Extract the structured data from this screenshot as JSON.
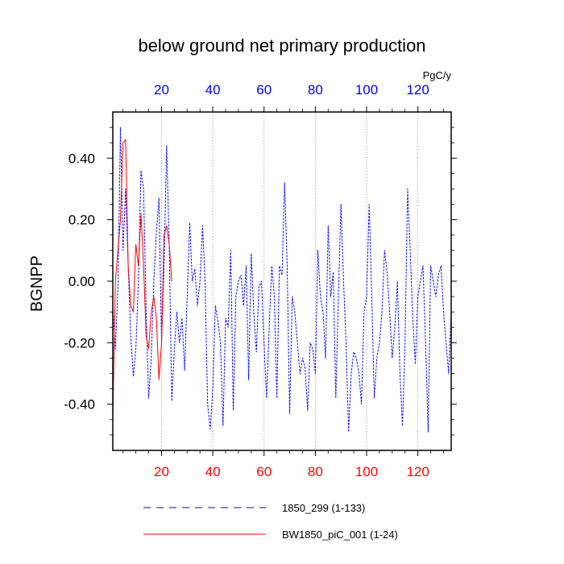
{
  "chart_data": {
    "type": "line",
    "title": "below ground net primary production",
    "units": "PgC/y",
    "ylabel": "BGNPP",
    "xlabel": "",
    "xlim": [
      1,
      133
    ],
    "ylim": [
      -0.55,
      0.55
    ],
    "grid": true,
    "x_ticks": [
      20,
      40,
      60,
      80,
      100,
      120
    ],
    "x_tick_labels": [
      "20",
      "40",
      "60",
      "80",
      "100",
      "120"
    ],
    "y_ticks": [
      -0.4,
      -0.2,
      0.0,
      0.2,
      0.4
    ],
    "y_tick_labels": [
      "-0.40",
      "-0.20",
      "0.00",
      "0.20",
      "0.40"
    ],
    "top_axis_color": "#0000ff",
    "bottom_axis_color": "#ff0000",
    "legend_position": "bottom",
    "series": [
      {
        "name": "1850_299 (1-133)",
        "color": "#0000ff",
        "dash": "dashed",
        "x": [
          1,
          2,
          3,
          4,
          5,
          6,
          7,
          8,
          9,
          10,
          11,
          12,
          13,
          14,
          15,
          16,
          17,
          18,
          19,
          20,
          21,
          22,
          23,
          24,
          25,
          26,
          27,
          28,
          29,
          30,
          31,
          32,
          33,
          34,
          35,
          36,
          37,
          38,
          39,
          40,
          41,
          42,
          43,
          44,
          45,
          46,
          47,
          48,
          49,
          50,
          51,
          52,
          53,
          54,
          55,
          56,
          57,
          58,
          59,
          60,
          61,
          62,
          63,
          64,
          65,
          66,
          67,
          68,
          69,
          70,
          71,
          72,
          73,
          74,
          75,
          76,
          77,
          78,
          79,
          80,
          81,
          82,
          83,
          84,
          85,
          86,
          87,
          88,
          89,
          90,
          91,
          92,
          93,
          94,
          95,
          96,
          97,
          98,
          99,
          100,
          101,
          102,
          103,
          104,
          105,
          106,
          107,
          108,
          109,
          110,
          111,
          112,
          113,
          114,
          115,
          116,
          117,
          118,
          119,
          120,
          121,
          122,
          123,
          124,
          125,
          126,
          127,
          128,
          129,
          130,
          131,
          132,
          133
        ],
        "y": [
          -0.08,
          -0.22,
          -0.02,
          0.5,
          0.1,
          0.3,
          0.05,
          -0.18,
          -0.31,
          -0.22,
          0.0,
          0.36,
          0.3,
          -0.1,
          -0.38,
          -0.25,
          0.0,
          0.16,
          0.27,
          -0.2,
          0.05,
          0.44,
          0.12,
          -0.39,
          -0.22,
          -0.1,
          -0.2,
          -0.12,
          -0.29,
          -0.05,
          0.19,
          0.0,
          0.04,
          -0.08,
          0.0,
          0.18,
          0.0,
          -0.4,
          -0.48,
          -0.35,
          -0.08,
          -0.13,
          -0.2,
          -0.47,
          -0.12,
          -0.15,
          0.1,
          -0.42,
          -0.05,
          0.0,
          0.02,
          -0.08,
          0.05,
          -0.32,
          0.09,
          -0.1,
          -0.23,
          -0.02,
          0.0,
          -0.2,
          -0.38,
          -0.15,
          0.05,
          -0.05,
          -0.38,
          0.05,
          0.02,
          0.32,
          0.05,
          -0.43,
          -0.05,
          -0.1,
          -0.2,
          -0.3,
          -0.25,
          -0.28,
          -0.42,
          -0.2,
          -0.22,
          -0.3,
          0.1,
          -0.05,
          -0.1,
          -0.25,
          0.18,
          -0.05,
          0.03,
          -0.38,
          -0.05,
          0.25,
          0.0,
          -0.2,
          -0.49,
          -0.3,
          -0.23,
          -0.25,
          -0.3,
          -0.4,
          -0.1,
          -0.05,
          0.25,
          -0.05,
          -0.38,
          -0.25,
          -0.2,
          -0.1,
          0.1,
          0.03,
          -0.1,
          -0.25,
          -0.15,
          0.0,
          -0.3,
          -0.47,
          -0.2,
          0.3,
          0.1,
          -0.12,
          -0.27,
          -0.05,
          0.0,
          0.05,
          -0.2,
          -0.49,
          0.05,
          0.0,
          -0.05,
          0.02,
          0.05,
          -0.1,
          -0.2,
          -0.3,
          -0.1
        ]
      },
      {
        "name": "BW1850_piC_001 (1-24)",
        "color": "#ff0000",
        "dash": "solid",
        "x": [
          1,
          2,
          3,
          4,
          5,
          6,
          7,
          8,
          9,
          10,
          11,
          12,
          13,
          14,
          15,
          16,
          17,
          18,
          19,
          20,
          21,
          22,
          23,
          24
        ],
        "y": [
          -0.46,
          0.0,
          0.1,
          0.2,
          0.45,
          0.46,
          0.05,
          -0.08,
          -0.1,
          0.12,
          0.05,
          0.22,
          0.05,
          -0.18,
          -0.22,
          -0.1,
          -0.05,
          -0.12,
          -0.32,
          -0.2,
          0.15,
          0.18,
          0.12,
          0.0
        ]
      }
    ]
  }
}
